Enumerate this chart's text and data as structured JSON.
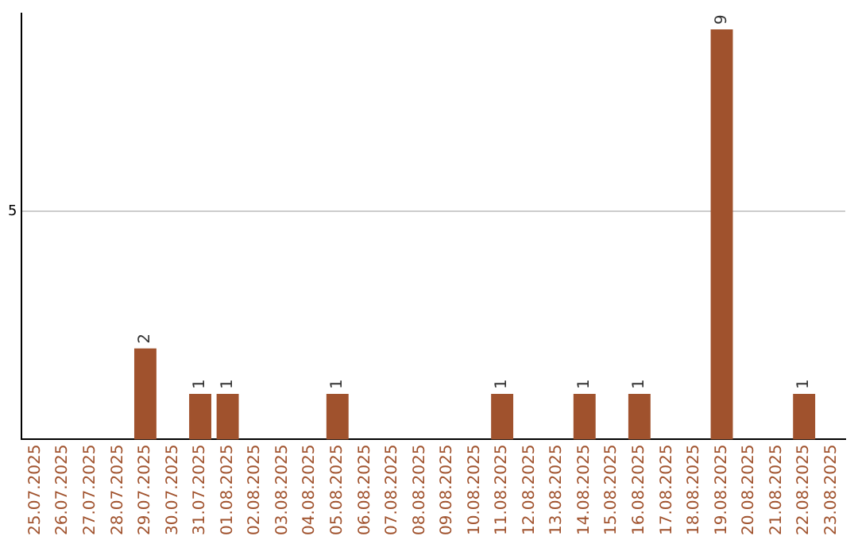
{
  "chart_data": {
    "type": "bar",
    "categories": [
      "25.07.2025",
      "26.07.2025",
      "27.07.2025",
      "28.07.2025",
      "29.07.2025",
      "30.07.2025",
      "31.07.2025",
      "01.08.2025",
      "02.08.2025",
      "03.08.2025",
      "04.08.2025",
      "05.08.2025",
      "06.08.2025",
      "07.08.2025",
      "08.08.2025",
      "09.08.2025",
      "10.08.2025",
      "11.08.2025",
      "12.08.2025",
      "13.08.2025",
      "14.08.2025",
      "15.08.2025",
      "16.08.2025",
      "17.08.2025",
      "18.08.2025",
      "19.08.2025",
      "20.08.2025",
      "21.08.2025",
      "22.08.2025",
      "23.08.2025"
    ],
    "values": [
      null,
      null,
      null,
      null,
      2,
      null,
      1,
      1,
      null,
      null,
      null,
      1,
      null,
      null,
      null,
      null,
      null,
      1,
      null,
      null,
      1,
      null,
      1,
      null,
      null,
      9,
      null,
      null,
      1,
      null
    ],
    "color": "#a0522d",
    "ylim": [
      0,
      9.35
    ],
    "yticks": [
      5
    ],
    "grid": "y",
    "data_labels": true
  }
}
